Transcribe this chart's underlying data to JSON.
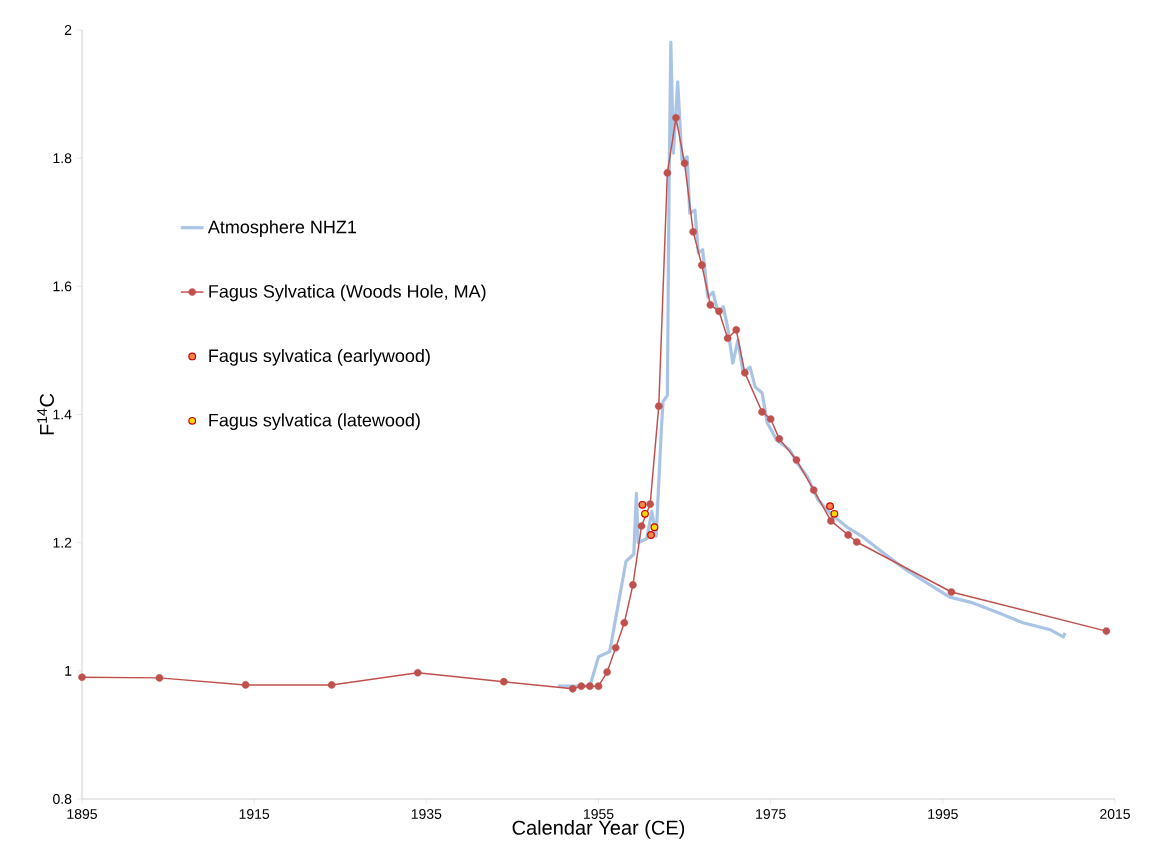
{
  "chart_data": {
    "type": "line",
    "xlabel": "Calendar Year (CE)",
    "ylabel": "F$^{14}$C",
    "xlim": [
      1895,
      2015
    ],
    "xticks": [
      1895,
      1915,
      1935,
      1955,
      1975,
      1995,
      2015
    ],
    "ylim": [
      0.8,
      2
    ],
    "yticks": [
      0.8,
      1,
      1.2,
      1.4,
      1.6,
      1.8,
      2
    ],
    "grid": false,
    "legend": "top left",
    "line_style": "solid",
    "series": [
      {
        "name": "Atmosphere NHZ1",
        "marker": "none",
        "color": "#a9c4e4",
        "x": [
          1950.3,
          1954,
          1955,
          1956.3,
          1958.2,
          1959.1,
          1959.4,
          1959.6,
          1960.6,
          1961.2,
          1961.7,
          1962.3,
          1962.5,
          1963,
          1963.2,
          1963.4,
          1963.7,
          1964.2,
          1964.7,
          1965.3,
          1965.6,
          1966.2,
          1966.6,
          1967.1,
          1967.7,
          1968.3,
          1968.9,
          1969.5,
          1970,
          1970.6,
          1971.2,
          1971.8,
          1972.6,
          1973.2,
          1974,
          1974.6,
          1975.7,
          1977.2,
          1978.1,
          1979.3,
          1980.5,
          1981.9,
          1983.9,
          1985.7,
          1988.1,
          1990.8,
          1993.2,
          1995.8,
          1998.5,
          2001.6,
          2004.3,
          2007.5,
          2009,
          2009.2
        ],
        "values": [
          0.976,
          0.976,
          1.022,
          1.03,
          1.171,
          1.182,
          1.277,
          1.2,
          1.206,
          1.249,
          1.21,
          1.377,
          1.42,
          1.43,
          1.757,
          1.981,
          1.808,
          1.919,
          1.797,
          1.802,
          1.714,
          1.719,
          1.652,
          1.657,
          1.583,
          1.591,
          1.558,
          1.568,
          1.536,
          1.48,
          1.516,
          1.465,
          1.474,
          1.443,
          1.434,
          1.387,
          1.36,
          1.345,
          1.324,
          1.302,
          1.267,
          1.246,
          1.224,
          1.209,
          1.184,
          1.157,
          1.137,
          1.115,
          1.106,
          1.09,
          1.075,
          1.064,
          1.053,
          1.059
        ]
      },
      {
        "name": "Fagus Sylvatica (Woods Hole, MA)",
        "marker": "circle",
        "color": "#c0504d",
        "x": [
          1895,
          1904,
          1914,
          1924,
          1934,
          1944,
          1952,
          1953,
          1954,
          1955,
          1956,
          1957,
          1958,
          1959,
          1960,
          1961,
          1962,
          1963,
          1964,
          1965,
          1966,
          1967,
          1968,
          1969,
          1970,
          1971,
          1972,
          1974,
          1975,
          1976,
          1978,
          1980,
          1982,
          1984,
          1985,
          1996,
          2014
        ],
        "values": [
          0.99,
          0.989,
          0.978,
          0.978,
          0.997,
          0.983,
          0.972,
          0.976,
          0.976,
          0.976,
          0.998,
          1.036,
          1.075,
          1.134,
          1.226,
          1.26,
          1.413,
          1.777,
          1.863,
          1.792,
          1.685,
          1.633,
          1.571,
          1.561,
          1.519,
          1.532,
          1.465,
          1.404,
          1.393,
          1.362,
          1.329,
          1.282,
          1.234,
          1.212,
          1.201,
          1.123,
          1.062
        ]
      },
      {
        "name": "Fagus sylvatica (earlywood)",
        "type": "scatter",
        "marker": "circle",
        "color": "#f4894a",
        "x": [
          1960.1,
          1961.1,
          1981.9
        ],
        "values": [
          1.259,
          1.212,
          1.257
        ]
      },
      {
        "name": "Fagus sylvatica (latewood)",
        "type": "scatter",
        "marker": "circle",
        "color": "#ffd800",
        "x": [
          1960.4,
          1961.5,
          1982.4
        ],
        "values": [
          1.245,
          1.224,
          1.245
        ]
      }
    ]
  }
}
